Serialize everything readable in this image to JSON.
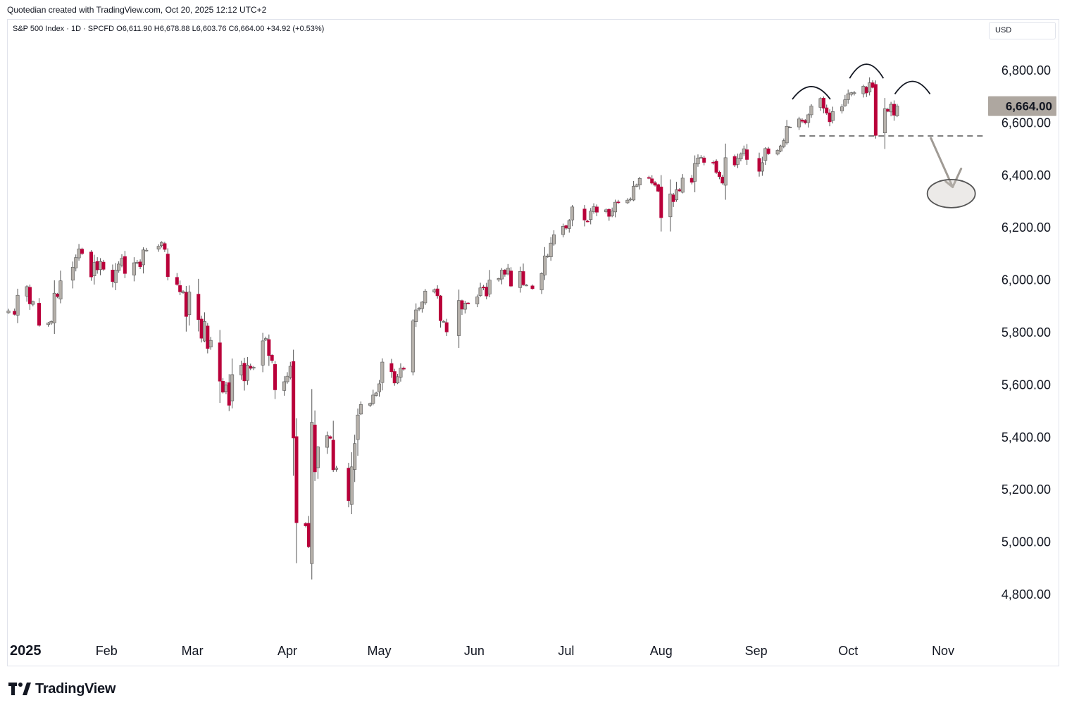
{
  "page": {
    "caption": "Quotedian created with TradingView.com, Oct 20, 2025 12:12 UTC+2",
    "branding": "TradingView",
    "currency": "USD"
  },
  "legend": {
    "text": "S&P 500 Index · 1D · SPCFD  O6,611.90  H6,678.88  L6,603.76  C6,664.00  +34.92 (+0.53%)"
  },
  "colors": {
    "up_body": "#b5b0aa",
    "down_body": "#b9003a",
    "wick": "#555555",
    "price_label_bg": "#aea7a0",
    "annotation_gray": "#a09b95"
  },
  "chart_data": {
    "type": "candlestick",
    "symbol": "S&P 500 Index",
    "interval": "1D",
    "source": "SPCFD",
    "ylim": [
      4650,
      6950
    ],
    "yticks": [
      "6,800.00",
      "6,600.00",
      "6,400.00",
      "6,200.00",
      "6,000.00",
      "5,800.00",
      "5,600.00",
      "5,400.00",
      "5,200.00",
      "5,000.00",
      "4,800.00"
    ],
    "ytick_values": [
      6800,
      6600,
      6400,
      6200,
      6000,
      5800,
      5600,
      5400,
      5200,
      5000,
      4800
    ],
    "xticks": [
      {
        "label": "2025",
        "date": "2025-01-01",
        "bold": true
      },
      {
        "label": "Feb",
        "date": "2025-02-01"
      },
      {
        "label": "Mar",
        "date": "2025-03-01"
      },
      {
        "label": "Apr",
        "date": "2025-04-01"
      },
      {
        "label": "May",
        "date": "2025-05-01"
      },
      {
        "label": "Jun",
        "date": "2025-06-01"
      },
      {
        "label": "Jul",
        "date": "2025-07-01"
      },
      {
        "label": "Aug",
        "date": "2025-08-01"
      },
      {
        "label": "Sep",
        "date": "2025-09-01"
      },
      {
        "label": "Oct",
        "date": "2025-10-01"
      },
      {
        "label": "Nov",
        "date": "2025-11-01"
      }
    ],
    "x_range": [
      "2024-12-31",
      "2025-11-15"
    ],
    "last_price": 6664,
    "last_price_label": "6,664.00",
    "support_level": 6550,
    "support_from": "2025-09-17",
    "closes": [
      {
        "date": "2024-12-31",
        "c": 5882
      },
      {
        "date": "2025-01-02",
        "c": 5869
      },
      {
        "date": "2025-01-03",
        "c": 5942
      },
      {
        "date": "2025-01-06",
        "c": 5975
      },
      {
        "date": "2025-01-07",
        "c": 5909
      },
      {
        "date": "2025-01-08",
        "c": 5918
      },
      {
        "date": "2025-01-10",
        "c": 5827
      },
      {
        "date": "2025-01-13",
        "c": 5836
      },
      {
        "date": "2025-01-14",
        "c": 5842
      },
      {
        "date": "2025-01-15",
        "c": 5950
      },
      {
        "date": "2025-01-16",
        "c": 5937
      },
      {
        "date": "2025-01-17",
        "c": 5997
      },
      {
        "date": "2025-01-21",
        "c": 6049
      },
      {
        "date": "2025-01-22",
        "c": 6086
      },
      {
        "date": "2025-01-23",
        "c": 6119
      },
      {
        "date": "2025-01-24",
        "c": 6101
      },
      {
        "date": "2025-01-27",
        "c": 6012
      },
      {
        "date": "2025-01-28",
        "c": 6067
      },
      {
        "date": "2025-01-29",
        "c": 6039
      },
      {
        "date": "2025-01-30",
        "c": 6071
      },
      {
        "date": "2025-01-31",
        "c": 6041
      },
      {
        "date": "2025-02-03",
        "c": 5994
      },
      {
        "date": "2025-02-04",
        "c": 6038
      },
      {
        "date": "2025-02-05",
        "c": 6061
      },
      {
        "date": "2025-02-06",
        "c": 6083
      },
      {
        "date": "2025-02-07",
        "c": 6025
      },
      {
        "date": "2025-02-10",
        "c": 6066
      },
      {
        "date": "2025-02-11",
        "c": 6068
      },
      {
        "date": "2025-02-12",
        "c": 6051
      },
      {
        "date": "2025-02-13",
        "c": 6115
      },
      {
        "date": "2025-02-14",
        "c": 6114
      },
      {
        "date": "2025-02-18",
        "c": 6129
      },
      {
        "date": "2025-02-19",
        "c": 6144
      },
      {
        "date": "2025-02-20",
        "c": 6117
      },
      {
        "date": "2025-02-21",
        "c": 6013
      },
      {
        "date": "2025-02-24",
        "c": 5983
      },
      {
        "date": "2025-02-25",
        "c": 5955
      },
      {
        "date": "2025-02-26",
        "c": 5956
      },
      {
        "date": "2025-02-27",
        "c": 5861
      },
      {
        "date": "2025-02-28",
        "c": 5954
      },
      {
        "date": "2025-03-03",
        "c": 5849
      },
      {
        "date": "2025-03-04",
        "c": 5778
      },
      {
        "date": "2025-03-05",
        "c": 5842
      },
      {
        "date": "2025-03-06",
        "c": 5739
      },
      {
        "date": "2025-03-07",
        "c": 5770
      },
      {
        "date": "2025-03-10",
        "c": 5614
      },
      {
        "date": "2025-03-11",
        "c": 5572
      },
      {
        "date": "2025-03-12",
        "c": 5599
      },
      {
        "date": "2025-03-13",
        "c": 5522
      },
      {
        "date": "2025-03-14",
        "c": 5639
      },
      {
        "date": "2025-03-17",
        "c": 5675
      },
      {
        "date": "2025-03-18",
        "c": 5615
      },
      {
        "date": "2025-03-19",
        "c": 5675
      },
      {
        "date": "2025-03-20",
        "c": 5663
      },
      {
        "date": "2025-03-21",
        "c": 5667
      },
      {
        "date": "2025-03-24",
        "c": 5768
      },
      {
        "date": "2025-03-25",
        "c": 5777
      },
      {
        "date": "2025-03-26",
        "c": 5712
      },
      {
        "date": "2025-03-27",
        "c": 5693
      },
      {
        "date": "2025-03-28",
        "c": 5581
      },
      {
        "date": "2025-03-31",
        "c": 5612
      },
      {
        "date": "2025-04-01",
        "c": 5633
      },
      {
        "date": "2025-04-02",
        "c": 5671
      },
      {
        "date": "2025-04-03",
        "c": 5397
      },
      {
        "date": "2025-04-04",
        "c": 5074
      },
      {
        "date": "2025-04-07",
        "c": 5062
      },
      {
        "date": "2025-04-08",
        "c": 4982
      },
      {
        "date": "2025-04-09",
        "c": 5457
      },
      {
        "date": "2025-04-10",
        "c": 5268
      },
      {
        "date": "2025-04-11",
        "c": 5363
      },
      {
        "date": "2025-04-14",
        "c": 5406
      },
      {
        "date": "2025-04-15",
        "c": 5396
      },
      {
        "date": "2025-04-16",
        "c": 5276
      },
      {
        "date": "2025-04-17",
        "c": 5283
      },
      {
        "date": "2025-04-21",
        "c": 5158
      },
      {
        "date": "2025-04-22",
        "c": 5287
      },
      {
        "date": "2025-04-23",
        "c": 5376
      },
      {
        "date": "2025-04-24",
        "c": 5485
      },
      {
        "date": "2025-04-25",
        "c": 5525
      },
      {
        "date": "2025-04-28",
        "c": 5529
      },
      {
        "date": "2025-04-29",
        "c": 5561
      },
      {
        "date": "2025-04-30",
        "c": 5569
      },
      {
        "date": "2025-05-01",
        "c": 5604
      },
      {
        "date": "2025-05-02",
        "c": 5687
      },
      {
        "date": "2025-05-05",
        "c": 5650
      },
      {
        "date": "2025-05-06",
        "c": 5607
      },
      {
        "date": "2025-05-07",
        "c": 5631
      },
      {
        "date": "2025-05-08",
        "c": 5664
      },
      {
        "date": "2025-05-09",
        "c": 5660
      },
      {
        "date": "2025-05-12",
        "c": 5844
      },
      {
        "date": "2025-05-13",
        "c": 5886
      },
      {
        "date": "2025-05-14",
        "c": 5892
      },
      {
        "date": "2025-05-15",
        "c": 5916
      },
      {
        "date": "2025-05-16",
        "c": 5958
      },
      {
        "date": "2025-05-19",
        "c": 5963
      },
      {
        "date": "2025-05-20",
        "c": 5940
      },
      {
        "date": "2025-05-21",
        "c": 5845
      },
      {
        "date": "2025-05-22",
        "c": 5842
      },
      {
        "date": "2025-05-23",
        "c": 5802
      },
      {
        "date": "2025-05-27",
        "c": 5922
      },
      {
        "date": "2025-05-28",
        "c": 5889
      },
      {
        "date": "2025-05-29",
        "c": 5912
      },
      {
        "date": "2025-05-30",
        "c": 5911
      },
      {
        "date": "2025-06-02",
        "c": 5936
      },
      {
        "date": "2025-06-03",
        "c": 5970
      },
      {
        "date": "2025-06-04",
        "c": 5970
      },
      {
        "date": "2025-06-05",
        "c": 5939
      },
      {
        "date": "2025-06-06",
        "c": 6000
      },
      {
        "date": "2025-06-09",
        "c": 6006
      },
      {
        "date": "2025-06-10",
        "c": 6038
      },
      {
        "date": "2025-06-11",
        "c": 6022
      },
      {
        "date": "2025-06-12",
        "c": 6045
      },
      {
        "date": "2025-06-13",
        "c": 5977
      },
      {
        "date": "2025-06-16",
        "c": 6033
      },
      {
        "date": "2025-06-17",
        "c": 5982
      },
      {
        "date": "2025-06-18",
        "c": 5981
      },
      {
        "date": "2025-06-20",
        "c": 5967
      },
      {
        "date": "2025-06-23",
        "c": 6025
      },
      {
        "date": "2025-06-24",
        "c": 6092
      },
      {
        "date": "2025-06-25",
        "c": 6092
      },
      {
        "date": "2025-06-26",
        "c": 6141
      },
      {
        "date": "2025-06-27",
        "c": 6173
      },
      {
        "date": "2025-06-30",
        "c": 6205
      },
      {
        "date": "2025-07-01",
        "c": 6198
      },
      {
        "date": "2025-07-02",
        "c": 6227
      },
      {
        "date": "2025-07-03",
        "c": 6279
      },
      {
        "date": "2025-07-07",
        "c": 6229
      },
      {
        "date": "2025-07-08",
        "c": 6225
      },
      {
        "date": "2025-07-09",
        "c": 6263
      },
      {
        "date": "2025-07-10",
        "c": 6280
      },
      {
        "date": "2025-07-11",
        "c": 6259
      },
      {
        "date": "2025-07-14",
        "c": 6268
      },
      {
        "date": "2025-07-15",
        "c": 6243
      },
      {
        "date": "2025-07-16",
        "c": 6263
      },
      {
        "date": "2025-07-17",
        "c": 6297
      },
      {
        "date": "2025-07-18",
        "c": 6296
      },
      {
        "date": "2025-07-21",
        "c": 6305
      },
      {
        "date": "2025-07-22",
        "c": 6309
      },
      {
        "date": "2025-07-23",
        "c": 6358
      },
      {
        "date": "2025-07-24",
        "c": 6363
      },
      {
        "date": "2025-07-25",
        "c": 6388
      },
      {
        "date": "2025-07-28",
        "c": 6389
      },
      {
        "date": "2025-07-29",
        "c": 6370
      },
      {
        "date": "2025-07-30",
        "c": 6362
      },
      {
        "date": "2025-07-31",
        "c": 6339
      },
      {
        "date": "2025-08-01",
        "c": 6238
      },
      {
        "date": "2025-08-04",
        "c": 6329
      },
      {
        "date": "2025-08-05",
        "c": 6299
      },
      {
        "date": "2025-08-06",
        "c": 6345
      },
      {
        "date": "2025-08-07",
        "c": 6340
      },
      {
        "date": "2025-08-08",
        "c": 6389
      },
      {
        "date": "2025-08-11",
        "c": 6373
      },
      {
        "date": "2025-08-12",
        "c": 6445
      },
      {
        "date": "2025-08-13",
        "c": 6466
      },
      {
        "date": "2025-08-14",
        "c": 6468
      },
      {
        "date": "2025-08-15",
        "c": 6449
      },
      {
        "date": "2025-08-18",
        "c": 6449
      },
      {
        "date": "2025-08-19",
        "c": 6411
      },
      {
        "date": "2025-08-20",
        "c": 6395
      },
      {
        "date": "2025-08-21",
        "c": 6370
      },
      {
        "date": "2025-08-22",
        "c": 6467
      },
      {
        "date": "2025-08-25",
        "c": 6439
      },
      {
        "date": "2025-08-26",
        "c": 6465
      },
      {
        "date": "2025-08-27",
        "c": 6481
      },
      {
        "date": "2025-08-28",
        "c": 6501
      },
      {
        "date": "2025-08-29",
        "c": 6460
      },
      {
        "date": "2025-09-02",
        "c": 6415
      },
      {
        "date": "2025-09-03",
        "c": 6448
      },
      {
        "date": "2025-09-04",
        "c": 6502
      },
      {
        "date": "2025-09-05",
        "c": 6482
      },
      {
        "date": "2025-09-08",
        "c": 6495
      },
      {
        "date": "2025-09-09",
        "c": 6512
      },
      {
        "date": "2025-09-10",
        "c": 6532
      },
      {
        "date": "2025-09-11",
        "c": 6587
      },
      {
        "date": "2025-09-12",
        "c": 6584
      },
      {
        "date": "2025-09-15",
        "c": 6615
      },
      {
        "date": "2025-09-16",
        "c": 6606
      },
      {
        "date": "2025-09-17",
        "c": 6600
      },
      {
        "date": "2025-09-18",
        "c": 6631
      },
      {
        "date": "2025-09-19",
        "c": 6664
      },
      {
        "date": "2025-09-22",
        "c": 6693
      },
      {
        "date": "2025-09-23",
        "c": 6656
      },
      {
        "date": "2025-09-24",
        "c": 6637
      },
      {
        "date": "2025-09-25",
        "c": 6604
      },
      {
        "date": "2025-09-26",
        "c": 6643
      },
      {
        "date": "2025-09-29",
        "c": 6661
      },
      {
        "date": "2025-09-30",
        "c": 6688
      },
      {
        "date": "2025-10-01",
        "c": 6711
      },
      {
        "date": "2025-10-02",
        "c": 6715
      },
      {
        "date": "2025-10-03",
        "c": 6715
      },
      {
        "date": "2025-10-06",
        "c": 6740
      },
      {
        "date": "2025-10-07",
        "c": 6714
      },
      {
        "date": "2025-10-08",
        "c": 6753
      },
      {
        "date": "2025-10-09",
        "c": 6735
      },
      {
        "date": "2025-10-10",
        "c": 6552
      },
      {
        "date": "2025-10-13",
        "c": 6654
      },
      {
        "date": "2025-10-14",
        "c": 6644
      },
      {
        "date": "2025-10-15",
        "c": 6671
      },
      {
        "date": "2025-10-16",
        "c": 6629
      },
      {
        "date": "2025-10-17",
        "c": 6664
      }
    ]
  }
}
